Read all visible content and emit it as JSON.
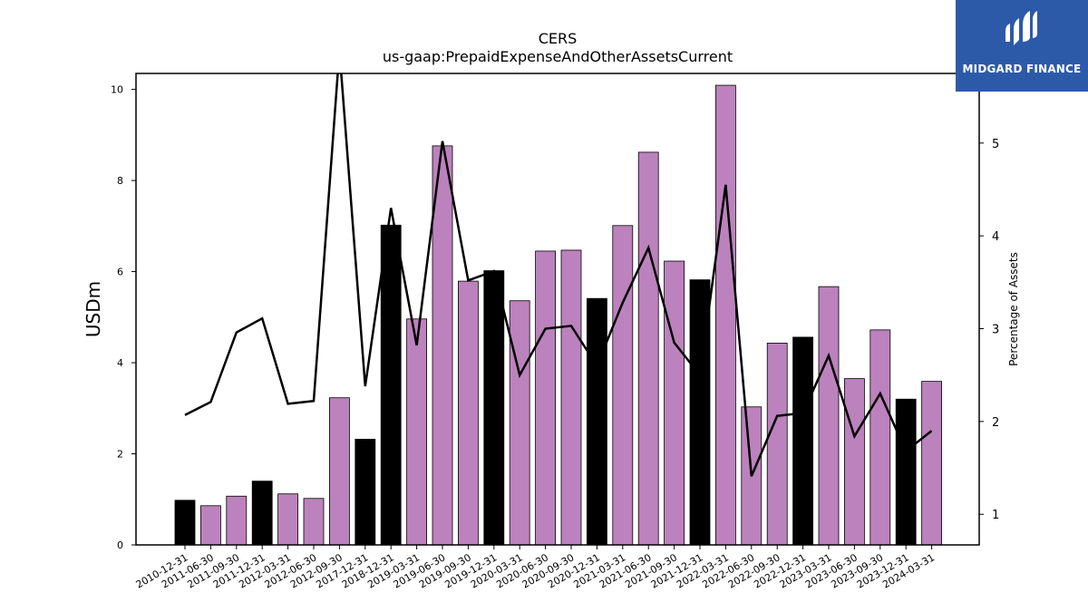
{
  "chart_data": {
    "type": "bar",
    "title": "CERS",
    "subtitle": "us-gaap:PrepaidExpenseAndOtherAssetsCurrent",
    "ylabel": "USDm",
    "ylabel_right": "Percentage of Assets",
    "ylim": [
      0,
      10.35
    ],
    "ylim_right": [
      0.67,
      5.75
    ],
    "yticks": [
      0,
      2,
      4,
      6,
      8,
      10
    ],
    "yticks_right": [
      1,
      2,
      3,
      4,
      5
    ],
    "categories": [
      "2010-12-31",
      "2011-06-30",
      "2011-09-30",
      "2011-12-31",
      "2012-03-31",
      "2012-06-30",
      "2012-09-30",
      "2017-12-31",
      "2018-12-31",
      "2019-03-31",
      "2019-06-30",
      "2019-09-30",
      "2019-12-31",
      "2020-03-31",
      "2020-06-30",
      "2020-09-30",
      "2020-12-31",
      "2021-03-31",
      "2021-06-30",
      "2021-09-30",
      "2021-12-31",
      "2022-03-31",
      "2022-06-30",
      "2022-09-30",
      "2022-12-31",
      "2023-03-31",
      "2023-06-30",
      "2023-09-30",
      "2023-12-31",
      "2024-03-31"
    ],
    "series": [
      {
        "type": "bar",
        "values": [
          0.98,
          0.86,
          1.07,
          1.4,
          1.12,
          1.02,
          3.23,
          2.32,
          7.02,
          4.96,
          8.76,
          5.79,
          6.02,
          5.36,
          6.45,
          6.47,
          5.41,
          7.01,
          8.62,
          6.23,
          5.82,
          10.09,
          3.03,
          4.43,
          4.56,
          5.67,
          3.65,
          4.72,
          3.2,
          3.59
        ],
        "bar_colors": [
          "#000000",
          "#bc82bd",
          "#bc82bd",
          "#000000",
          "#bc82bd",
          "#bc82bd",
          "#bc82bd",
          "#000000",
          "#000000",
          "#bc82bd",
          "#bc82bd",
          "#bc82bd",
          "#000000",
          "#bc82bd",
          "#bc82bd",
          "#bc82bd",
          "#000000",
          "#bc82bd",
          "#bc82bd",
          "#bc82bd",
          "#000000",
          "#bc82bd",
          "#bc82bd",
          "#bc82bd",
          "#000000",
          "#bc82bd",
          "#bc82bd",
          "#bc82bd",
          "#000000",
          "#bc82bd"
        ]
      },
      {
        "type": "line",
        "axis": "right",
        "color": "#000000",
        "values": [
          2.07,
          2.21,
          2.96,
          3.11,
          2.19,
          2.22,
          6.0,
          2.38,
          4.3,
          2.82,
          5.02,
          3.52,
          3.62,
          2.5,
          3.0,
          3.03,
          2.6,
          3.28,
          3.87,
          2.85,
          2.5,
          4.55,
          1.41,
          2.06,
          2.09,
          2.71,
          1.84,
          2.3,
          1.68,
          1.9
        ]
      }
    ],
    "grid": false,
    "legend": "none"
  },
  "logo": {
    "text": "MIDGARD FINANCE",
    "icon": "midgard-logo-icon",
    "background": "#2d5aa8"
  }
}
